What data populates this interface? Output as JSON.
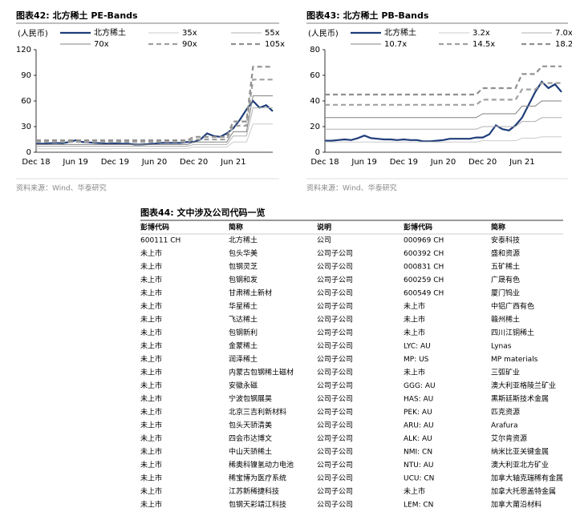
{
  "chart_data": [
    {
      "type": "line",
      "title": "图表42:  北方稀土 PE-Bands",
      "ylabel": "(人民币)",
      "source": "资料来源：Wind、华泰研究",
      "categories": [
        "Dec 18",
        null,
        null,
        null,
        null,
        null,
        "Jun 19",
        null,
        null,
        null,
        null,
        null,
        "Dec 19",
        null,
        null,
        null,
        null,
        null,
        "Jun 20",
        null,
        null,
        null,
        null,
        null,
        "Dec 20",
        null,
        null,
        null,
        null,
        null,
        "Jun 21",
        null,
        null,
        null,
        null,
        null,
        null
      ],
      "ylim": [
        0,
        120
      ],
      "yticks": [
        0,
        30,
        60,
        90,
        120
      ],
      "series": [
        {
          "name": "北方稀土",
          "color": "#1f3d7a",
          "values": [
            10,
            10,
            10.5,
            11,
            10.5,
            12,
            14,
            12,
            11.5,
            11,
            10.5,
            10,
            10.5,
            10,
            10,
            9,
            9,
            9.5,
            10,
            11,
            11,
            11,
            11,
            12,
            12,
            15,
            22,
            19,
            18,
            22,
            28,
            38,
            50,
            60,
            52,
            55,
            48
          ]
        },
        {
          "name": "35x",
          "color": "#cccccc",
          "values": [
            4,
            4,
            4,
            4,
            4,
            4,
            4,
            4,
            4,
            4,
            4,
            4,
            4.5,
            4.5,
            4.5,
            4.5,
            4.5,
            4.5,
            4.5,
            4.5,
            4.5,
            4.5,
            4.5,
            4.5,
            6,
            6,
            6,
            6,
            6,
            6,
            12,
            12,
            12,
            33,
            33,
            33,
            33
          ]
        },
        {
          "name": "55x",
          "color": "#b0b0b0",
          "values": [
            7,
            7,
            7,
            7,
            7,
            7,
            7,
            7,
            7,
            7,
            7,
            7,
            7,
            7,
            7,
            7,
            7,
            7,
            7,
            7,
            7,
            7,
            7,
            7,
            9,
            9,
            9,
            9,
            9,
            9,
            19,
            19,
            19,
            52,
            52,
            52,
            52
          ]
        },
        {
          "name": "70x",
          "color": "#808080",
          "values": [
            9,
            9,
            9,
            9,
            9,
            9,
            9,
            9,
            9,
            9,
            9,
            9,
            9,
            9,
            9,
            9,
            9,
            9,
            9,
            9,
            9,
            9,
            9,
            9,
            12,
            12,
            12,
            12,
            12,
            12,
            24,
            24,
            24,
            66,
            66,
            66,
            66
          ]
        },
        {
          "name": "90x",
          "color": "#a0a0a0",
          "dash": true,
          "values": [
            12,
            12,
            12,
            12,
            12,
            12,
            12,
            12,
            12,
            12,
            12,
            12,
            12,
            12,
            12,
            12,
            12,
            12,
            12,
            12,
            12,
            12,
            12,
            12,
            15,
            15,
            15,
            15,
            15,
            15,
            31,
            31,
            31,
            85,
            85,
            85,
            85
          ]
        },
        {
          "name": "105x",
          "color": "#909090",
          "dash": true,
          "values": [
            14,
            14,
            14,
            14,
            14,
            14,
            14,
            14,
            14,
            14,
            14,
            14,
            14,
            14,
            14,
            14,
            14,
            14,
            14,
            14,
            14,
            14,
            14,
            14,
            18,
            18,
            18,
            18,
            18,
            18,
            36,
            36,
            36,
            100,
            100,
            100,
            100
          ]
        }
      ]
    },
    {
      "type": "line",
      "title": "图表43:  北方稀土 PB-Bands",
      "ylabel": "(人民币)",
      "source": "资料来源：Wind、华泰研究",
      "categories": [
        "Dec 18",
        null,
        null,
        null,
        null,
        null,
        "Jun 19",
        null,
        null,
        null,
        null,
        null,
        "Dec 19",
        null,
        null,
        null,
        null,
        null,
        "Jun 20",
        null,
        null,
        null,
        null,
        null,
        "Dec 20",
        null,
        null,
        null,
        null,
        null,
        "Jun 21",
        null,
        null,
        null,
        null,
        null,
        null
      ],
      "ylim": [
        0,
        80
      ],
      "yticks": [
        0,
        20,
        40,
        60,
        80
      ],
      "series": [
        {
          "name": "北方稀土",
          "color": "#1f3d7a",
          "values": [
            9,
            9,
            9.5,
            10,
            9.5,
            11,
            13,
            11,
            10.5,
            10,
            10,
            9.5,
            10,
            9.5,
            9.5,
            8.5,
            8.5,
            9,
            9.5,
            10.5,
            10.5,
            10.5,
            10.5,
            11.5,
            11.5,
            14,
            21,
            18,
            17,
            21,
            27,
            37,
            47,
            55,
            50,
            53,
            47
          ]
        },
        {
          "name": "3.2x",
          "color": "#cccccc",
          "values": [
            8,
            8,
            8,
            8,
            8,
            8,
            8,
            8,
            8,
            8,
            8,
            8,
            8,
            8,
            8,
            8,
            8,
            8,
            8,
            8,
            8,
            8,
            8,
            8,
            9,
            9,
            9,
            9,
            9,
            9,
            11,
            11,
            11,
            12,
            12,
            12,
            12
          ]
        },
        {
          "name": "7.0x",
          "color": "#b0b0b0",
          "values": [
            18,
            18,
            18,
            18,
            18,
            18,
            18,
            18,
            18,
            18,
            18,
            18,
            18,
            18,
            18,
            18,
            18,
            18,
            18,
            18,
            18,
            18,
            18,
            18,
            20,
            20,
            20,
            20,
            20,
            20,
            24,
            24,
            24,
            27,
            27,
            27,
            27
          ]
        },
        {
          "name": "10.7x",
          "color": "#808080",
          "values": [
            27,
            27,
            27,
            27,
            27,
            27,
            27,
            27,
            27,
            27,
            27,
            27,
            27,
            27,
            27,
            27,
            27,
            27,
            27,
            27,
            27,
            27,
            27,
            27,
            30,
            30,
            30,
            30,
            30,
            30,
            36,
            36,
            36,
            40,
            40,
            40,
            40
          ]
        },
        {
          "name": "14.5x",
          "color": "#a0a0a0",
          "dash": true,
          "values": [
            37,
            37,
            37,
            37,
            37,
            37,
            37,
            37,
            37,
            37,
            37,
            37,
            37,
            37,
            37,
            37,
            37,
            37,
            37,
            37,
            37,
            37,
            37,
            37,
            41,
            41,
            41,
            41,
            41,
            41,
            49,
            49,
            49,
            54,
            54,
            54,
            54
          ]
        },
        {
          "name": "18.2x",
          "color": "#909090",
          "dash": true,
          "values": [
            45,
            45,
            45,
            45,
            45,
            45,
            45,
            45,
            45,
            45,
            45,
            45,
            45,
            45,
            45,
            45,
            45,
            45,
            45,
            45,
            45,
            45,
            45,
            45,
            50,
            50,
            50,
            50,
            50,
            50,
            61,
            61,
            61,
            67,
            67,
            67,
            67
          ]
        }
      ]
    }
  ],
  "table": {
    "title": "图表44:  文中涉及公司代码一览",
    "header": [
      "彭博代码",
      "简称",
      "说明",
      "彭博代码",
      "简称"
    ],
    "rows": [
      [
        "600111 CH",
        "北方稀土",
        "公司",
        "000969 CH",
        "安泰科技"
      ],
      [
        "未上市",
        "包头华美",
        "公司子公司",
        "600392 CH",
        "盛和资源"
      ],
      [
        "未上市",
        "包钢灵芝",
        "公司子公司",
        "000831 CH",
        "五矿稀土"
      ],
      [
        "未上市",
        "包钢和发",
        "公司子公司",
        "600259 CH",
        "广晟有色"
      ],
      [
        "未上市",
        "甘肃稀土新材",
        "公司子公司",
        "600549 CH",
        "厦门钨业"
      ],
      [
        "未上市",
        "华星稀土",
        "公司子公司",
        "未上市",
        "中铝广西有色"
      ],
      [
        "未上市",
        "飞达稀土",
        "公司子公司",
        "未上市",
        "赣州稀土"
      ],
      [
        "未上市",
        "包钢新利",
        "公司子公司",
        "未上市",
        "四川江铜稀土"
      ],
      [
        "未上市",
        "金蒙稀土",
        "公司子公司",
        "LYC: AU",
        "Lynas"
      ],
      [
        "未上市",
        "润泽稀土",
        "公司子公司",
        "MP: US",
        "MP materials"
      ],
      [
        "未上市",
        "内蒙古包钢稀土磁材",
        "公司子公司",
        "未上市",
        "三弧矿业"
      ],
      [
        "未上市",
        "安徽永磁",
        "公司子公司",
        "GGG: AU",
        "澳大利亚格陵兰矿业"
      ],
      [
        "未上市",
        "宁波包钢展昊",
        "公司子公司",
        "HAS: AU",
        "黑斯廷斯技术金属"
      ],
      [
        "未上市",
        "北京三吉利新材料",
        "公司子公司",
        "PEK: AU",
        "匹克资源"
      ],
      [
        "未上市",
        "包头天骄清美",
        "公司子公司",
        "ARU: AU",
        "Arafura"
      ],
      [
        "未上市",
        "四会市达博文",
        "公司子公司",
        "ALK: AU",
        "艾尔肯资源"
      ],
      [
        "未上市",
        "中山天骄稀土",
        "公司子公司",
        "NMI: CN",
        "纳米比亚关键金属"
      ],
      [
        "未上市",
        "稀奥科镍氢动力电池",
        "公司子公司",
        "NTU: AU",
        "澳大利亚北方矿业"
      ],
      [
        "未上市",
        "稀宝博为医疗系统",
        "公司子公司",
        "UCU: CN",
        "加拿大轴克瑞稀有金属"
      ],
      [
        "未上市",
        "江苏新稀捷科技",
        "公司子公司",
        "未上市",
        "加拿大托恩盖特金属"
      ],
      [
        "未上市",
        "包钢天彩靖江科技",
        "公司子公司",
        "LEM: CN",
        "加拿大莆沿材料"
      ]
    ]
  }
}
